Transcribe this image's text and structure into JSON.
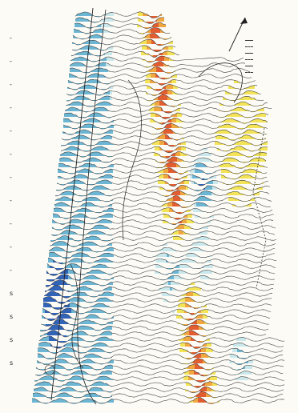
{
  "figure": {
    "colors": {
      "background": "#fdfbf6",
      "trace": "#3a3a3a",
      "positive_weak": "#f2e14a",
      "positive_mid": "#f0a030",
      "positive_strong": "#e0501e",
      "negative_weak": "#c6e6ea",
      "negative_mid": "#5fb0d0",
      "negative_strong": "#1f56b0",
      "annotation": "#222222"
    },
    "left_tick_labels": [
      "",
      "",
      "",
      "",
      "",
      "",
      "",
      "",
      "",
      "",
      ""
    ],
    "left_edge_marks": [
      {
        "label": "-"
      },
      {
        "label": "-"
      },
      {
        "label": "-"
      },
      {
        "label": "-"
      },
      {
        "label": "-"
      },
      {
        "label": "-"
      },
      {
        "label": "-"
      },
      {
        "label": "-"
      },
      {
        "label": "-"
      },
      {
        "label": "-"
      },
      {
        "label": "-"
      },
      {
        "label": "s"
      },
      {
        "label": "s"
      },
      {
        "label": "s"
      },
      {
        "label": "s"
      }
    ],
    "legend": {
      "title": "",
      "rows": [
        "",
        "",
        "",
        "",
        "",
        ""
      ]
    }
  }
}
